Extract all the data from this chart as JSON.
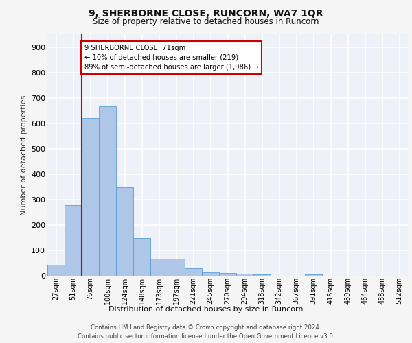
{
  "title": "9, SHERBORNE CLOSE, RUNCORN, WA7 1QR",
  "subtitle": "Size of property relative to detached houses in Runcorn",
  "xlabel": "Distribution of detached houses by size in Runcorn",
  "ylabel": "Number of detached properties",
  "bar_labels": [
    "27sqm",
    "51sqm",
    "76sqm",
    "100sqm",
    "124sqm",
    "148sqm",
    "173sqm",
    "197sqm",
    "221sqm",
    "245sqm",
    "270sqm",
    "294sqm",
    "318sqm",
    "342sqm",
    "367sqm",
    "391sqm",
    "415sqm",
    "439sqm",
    "464sqm",
    "488sqm",
    "512sqm"
  ],
  "bar_values": [
    44,
    280,
    622,
    667,
    348,
    150,
    68,
    68,
    30,
    15,
    12,
    10,
    8,
    0,
    0,
    8,
    0,
    0,
    0,
    0,
    0
  ],
  "bar_color": "#aec6e8",
  "bar_edge_color": "#5a9fd4",
  "vline_x": 1.5,
  "vline_color": "#cc0000",
  "annotation_text": "9 SHERBORNE CLOSE: 71sqm\n← 10% of detached houses are smaller (219)\n89% of semi-detached houses are larger (1,986) →",
  "annotation_box_color": "#ffffff",
  "annotation_box_edge": "#cc0000",
  "ylim": [
    0,
    950
  ],
  "yticks": [
    0,
    100,
    200,
    300,
    400,
    500,
    600,
    700,
    800,
    900
  ],
  "background_color": "#eef2f8",
  "grid_color": "#ffffff",
  "fig_background": "#f5f5f5",
  "footer_line1": "Contains HM Land Registry data © Crown copyright and database right 2024.",
  "footer_line2": "Contains public sector information licensed under the Open Government Licence v3.0."
}
